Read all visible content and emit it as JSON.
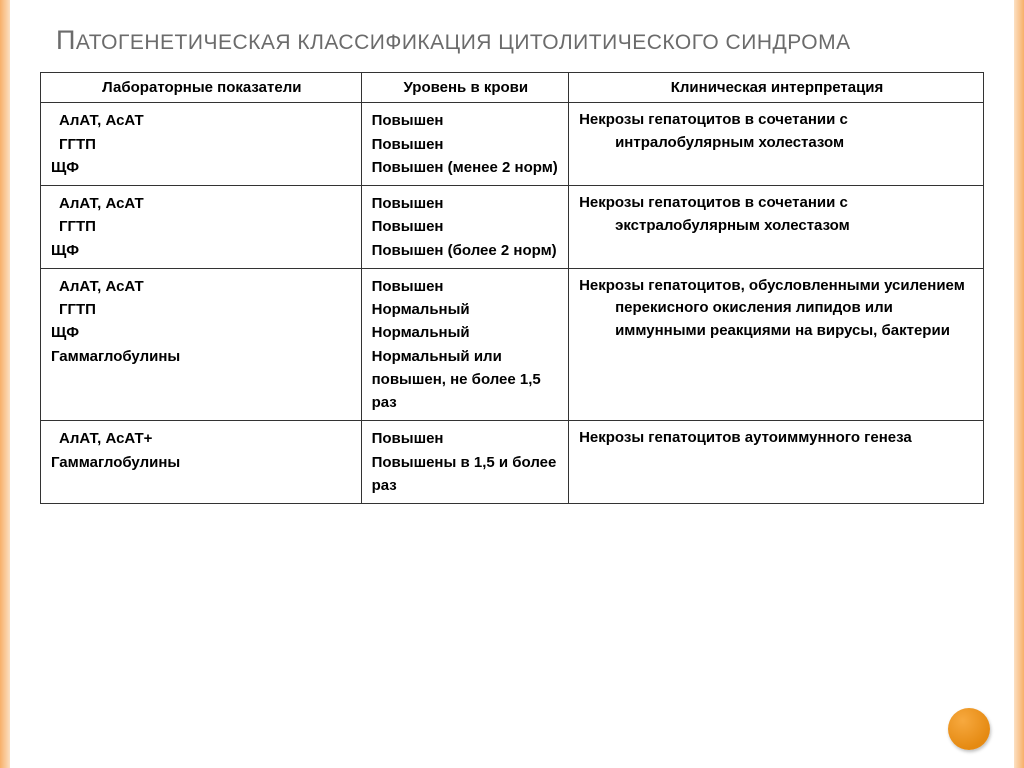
{
  "colors": {
    "side_light": "#fce0c2",
    "side_dark": "#f7b06a",
    "dot_a": "#f7a93f",
    "dot_b": "#e58a12",
    "title": "#6b6b6b",
    "text": "#000000",
    "border": "#333333",
    "bg": "#ffffff"
  },
  "title": "Патогенетическая классификация цитолитического синдрома",
  "table": {
    "headers": {
      "lab": "Лабораторные показатели",
      "level": "Уровень в крови",
      "clin": "Клиническая интерпретация"
    },
    "rows": [
      {
        "lab": [
          "АлАТ, АсАТ",
          "ГГТП",
          "ЩФ"
        ],
        "lab_indent": [
          true,
          true,
          false
        ],
        "level": [
          "Повышен",
          "Повышен",
          "Повышен (менее 2 норм)"
        ],
        "clin": "Некрозы гепатоцитов в сочетании с интралобулярным холестазом"
      },
      {
        "lab": [
          "АлАТ, АсАТ",
          "ГГТП",
          "ЩФ"
        ],
        "lab_indent": [
          true,
          true,
          false
        ],
        "level": [
          "Повышен",
          "Повышен",
          "Повышен (более 2 норм)"
        ],
        "clin": "Некрозы гепатоцитов в сочетании с экстралобулярным холестазом"
      },
      {
        "lab": [
          "АлАТ, АсАТ",
          "ГГТП",
          "ЩФ",
          "Гаммаглобулины"
        ],
        "lab_indent": [
          true,
          true,
          false,
          false
        ],
        "level": [
          "Повышен",
          "Нормальный",
          "Нормальный",
          "Нормальный или повышен, не более 1,5 раз"
        ],
        "clin": "Некрозы гепатоцитов, обусловленными усилением перекисного окисления липидов или иммунными реакциями на вирусы, бактерии"
      },
      {
        "lab": [
          "АлАТ, АсАТ+",
          "Гаммаглобулины"
        ],
        "lab_indent": [
          true,
          false
        ],
        "level": [
          "Повышен",
          "Повышены в 1,5 и более раз"
        ],
        "clin": "Некрозы гепатоцитов аутоиммунного генеза"
      }
    ]
  }
}
